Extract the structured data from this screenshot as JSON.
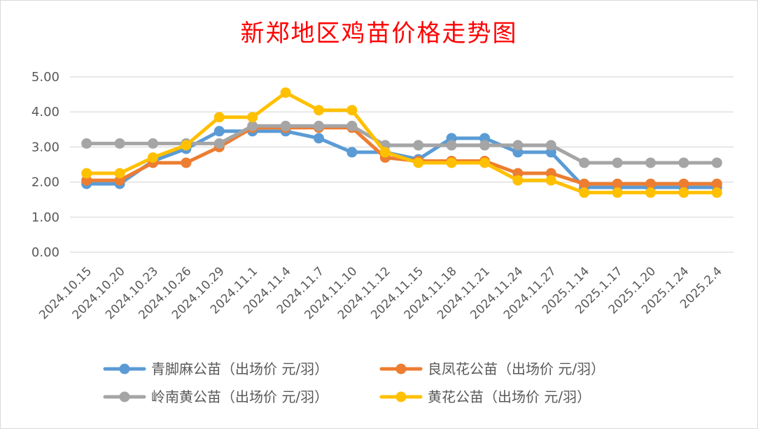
{
  "chart_data": {
    "type": "line",
    "title": "新郑地区鸡苗价格走势图",
    "categories": [
      "2024.10.15",
      "2024.10.20",
      "2024.10.23",
      "2024.10.26",
      "2024.10.29",
      "2024.11.1",
      "2024.11.4",
      "2024.11.7",
      "2024.11.10",
      "2024.11.12",
      "2024.11.15",
      "2024.11.18",
      "2024.11.21",
      "2024.11.24",
      "2024.11.27",
      "2025.1.14",
      "2025.1.17",
      "2025.1.20",
      "2025.1.24",
      "2025.2.4"
    ],
    "ylim": [
      0,
      5
    ],
    "yticks": [
      "0.00",
      "1.00",
      "2.00",
      "3.00",
      "4.00",
      "5.00"
    ],
    "grid": true,
    "legend_position": "bottom",
    "series": [
      {
        "name": "青脚麻公苗（出场价 元/羽）",
        "color": "#5b9bd5",
        "values": [
          1.95,
          1.95,
          2.6,
          2.95,
          3.45,
          3.45,
          3.45,
          3.25,
          2.85,
          2.85,
          2.65,
          3.25,
          3.25,
          2.85,
          2.85,
          1.85,
          1.85,
          1.85,
          1.85,
          1.85
        ]
      },
      {
        "name": "良凤花公苗（出场价 元/羽）",
        "color": "#ed7d31",
        "values": [
          2.05,
          2.05,
          2.55,
          2.55,
          3.0,
          3.55,
          3.55,
          3.55,
          3.55,
          2.7,
          2.6,
          2.6,
          2.6,
          2.25,
          2.25,
          1.95,
          1.95,
          1.95,
          1.95,
          1.95
        ]
      },
      {
        "name": "岭南黄公苗（出场价 元/羽）",
        "color": "#a5a5a5",
        "values": [
          3.1,
          3.1,
          3.1,
          3.1,
          3.1,
          3.6,
          3.6,
          3.6,
          3.6,
          3.05,
          3.05,
          3.05,
          3.05,
          3.05,
          3.05,
          2.55,
          2.55,
          2.55,
          2.55,
          2.55
        ]
      },
      {
        "name": "黄花公苗（出场价 元/羽）",
        "color": "#ffc000",
        "values": [
          2.25,
          2.25,
          2.7,
          3.05,
          3.85,
          3.85,
          4.55,
          4.05,
          4.05,
          2.85,
          2.55,
          2.55,
          2.55,
          2.05,
          2.05,
          1.7,
          1.7,
          1.7,
          1.7,
          1.7
        ]
      }
    ]
  }
}
